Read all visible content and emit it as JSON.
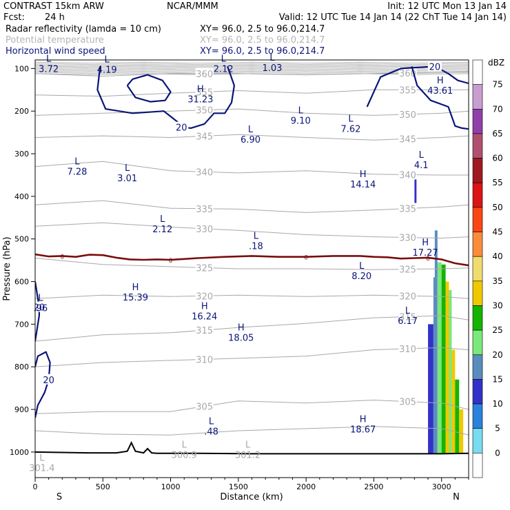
{
  "header": {
    "model": "CONTRAST 15km ARW",
    "center": "NCAR/MMM",
    "init": "Init: 12 UTC Mon 13 Jan 14",
    "fcst_label": "Fcst:",
    "fcst_value": "24 h",
    "valid": "Valid: 12 UTC Tue 14 Jan 14 (22 ChT Tue 14 Jan 14)"
  },
  "fields": [
    {
      "name": "Radar reflectivity (lamda = 10 cm)",
      "xy": "XY=  96.0,  2.5 to  96.0,214.7",
      "color": "#000000"
    },
    {
      "name": "Potential temperature",
      "xy": "XY=  96.0,  2.5 to  96.0,214.7",
      "color": "#b4b4b4"
    },
    {
      "name": "Horizontal wind speed",
      "xy": "XY=  96.0,  2.5 to  96.0,214.7",
      "color": "#0a1478"
    }
  ],
  "colors": {
    "theta": "#a8a8a8",
    "wind": "#0a1478",
    "freezing": "#7a0c0c",
    "terrain": "#000000"
  },
  "chart_data": {
    "type": "cross-section",
    "xlabel": "Distance (km)",
    "ylabel": "Pressure (hPa)",
    "xlim": [
      0,
      3200
    ],
    "ylim": [
      1060,
      80
    ],
    "x_ticks": [
      0,
      500,
      1000,
      1500,
      2000,
      2500,
      3000
    ],
    "y_ticks": [
      100,
      200,
      300,
      400,
      500,
      600,
      700,
      800,
      900,
      1000
    ],
    "end_labels": [
      "S",
      "N"
    ],
    "terrain_profile": {
      "x": [
        0,
        200,
        400,
        600,
        680,
        710,
        740,
        800,
        830,
        860,
        900,
        1200,
        1600,
        2000,
        2400,
        2800,
        3000,
        3200
      ],
      "p": [
        1000,
        1001,
        1002,
        1002,
        998,
        978,
        998,
        1002,
        992,
        1002,
        1003,
        1003,
        1004,
        1004,
        1004,
        1004,
        1004,
        1003
      ]
    },
    "freezing_level": {
      "label": "0",
      "x": [
        0,
        100,
        200,
        300,
        400,
        500,
        600,
        700,
        800,
        900,
        1000,
        1100,
        1200,
        1400,
        1600,
        1800,
        2000,
        2200,
        2400,
        2500,
        2600,
        2700,
        2800,
        2900,
        3000,
        3100,
        3200
      ],
      "p": [
        536,
        541,
        540,
        542,
        537,
        538,
        544,
        548,
        549,
        548,
        549,
        547,
        545,
        542,
        540,
        542,
        542,
        540,
        540,
        542,
        543,
        546,
        545,
        544,
        548,
        557,
        562
      ]
    },
    "theta_isolines": [
      {
        "value": "360",
        "x": [
          0,
          500,
          1000,
          1500,
          2000,
          2500,
          3000,
          3200
        ],
        "p": [
          112,
          118,
          112,
          112,
          115,
          112,
          110,
          108
        ]
      },
      {
        "value": "355",
        "x": [
          0,
          500,
          1000,
          1500,
          2000,
          2500,
          3000,
          3200
        ],
        "p": [
          162,
          165,
          158,
          152,
          158,
          150,
          150,
          150
        ]
      },
      {
        "value": "350",
        "x": [
          0,
          500,
          1000,
          1500,
          2000,
          2500,
          3000,
          3200
        ],
        "p": [
          210,
          205,
          200,
          195,
          205,
          210,
          205,
          200
        ]
      },
      {
        "value": "345",
        "x": [
          0,
          500,
          1000,
          1500,
          2000,
          2500,
          3000,
          3200
        ],
        "p": [
          262,
          258,
          262,
          255,
          262,
          268,
          262,
          258
        ]
      },
      {
        "value": "340",
        "x": [
          0,
          500,
          1000,
          1500,
          2000,
          2500,
          3000,
          3200
        ],
        "p": [
          330,
          318,
          340,
          345,
          340,
          348,
          350,
          350
        ]
      },
      {
        "value": "335",
        "x": [
          0,
          500,
          1000,
          1500,
          2000,
          2500,
          3000,
          3200
        ],
        "p": [
          420,
          410,
          428,
          430,
          438,
          432,
          425,
          420
        ]
      },
      {
        "value": "330",
        "x": [
          0,
          500,
          1000,
          1500,
          2000,
          2500,
          3000,
          3200
        ],
        "p": [
          470,
          462,
          472,
          480,
          490,
          495,
          498,
          495
        ]
      },
      {
        "value": "325",
        "x": [
          0,
          500,
          1000,
          1500,
          2000,
          2500,
          3000,
          3200
        ],
        "p": [
          545,
          560,
          565,
          570,
          570,
          572,
          570,
          568
        ]
      },
      {
        "value": "320",
        "x": [
          0,
          500,
          1000,
          1500,
          2000,
          2500,
          3000,
          3200
        ],
        "p": [
          640,
          632,
          635,
          632,
          635,
          632,
          635,
          640
        ]
      },
      {
        "value": "315",
        "x": [
          0,
          500,
          1000,
          1500,
          2000,
          2500,
          3000,
          3200
        ],
        "p": [
          740,
          725,
          720,
          708,
          698,
          685,
          680,
          690
        ]
      },
      {
        "value": "310",
        "x": [
          0,
          500,
          1000,
          1500,
          2000,
          2500,
          3000,
          3200
        ],
        "p": [
          800,
          790,
          785,
          780,
          775,
          760,
          755,
          760
        ]
      },
      {
        "value": "305",
        "x": [
          0,
          500,
          1000,
          1500,
          2000,
          2500,
          3000,
          3200
        ],
        "p": [
          910,
          905,
          905,
          880,
          885,
          878,
          885,
          900
        ]
      },
      {
        "value": "",
        "x": [
          0,
          500,
          1000,
          1500,
          2000,
          2500,
          3000,
          3200
        ],
        "p": [
          950,
          958,
          960,
          950,
          945,
          940,
          945,
          960
        ]
      }
    ],
    "wind_isotachs": [
      {
        "value": "20",
        "x": [
          480,
          460,
          520,
          720,
          950,
          1050,
          1080,
          1150,
          1250,
          1320,
          1400,
          1450,
          1470,
          1420
        ],
        "p": [
          95,
          150,
          195,
          205,
          200,
          225,
          238,
          240,
          230,
          205,
          205,
          180,
          140,
          95
        ]
      },
      {
        "value": "",
        "x": [
          680,
          720,
          830,
          940,
          1000,
          960,
          850,
          740,
          680
        ],
        "p": [
          140,
          125,
          115,
          128,
          155,
          175,
          178,
          168,
          140
        ]
      },
      {
        "value": "20",
        "x": [
          2450,
          2550,
          2700,
          2950,
          3050,
          3120,
          3200
        ],
        "p": [
          190,
          120,
          100,
          95,
          112,
          128,
          135
        ]
      },
      {
        "value": "",
        "x": [
          2780,
          2820,
          2920,
          3050,
          3100,
          3150,
          3200
        ],
        "p": [
          95,
          140,
          175,
          190,
          235,
          240,
          242
        ]
      },
      {
        "value": "20",
        "x": [
          0,
          10,
          20,
          30,
          30,
          20,
          10,
          0
        ],
        "p": [
          600,
          620,
          640,
          660,
          680,
          700,
          720,
          740
        ]
      },
      {
        "value": "20",
        "x": [
          0,
          20,
          80,
          110,
          100,
          70,
          40,
          20,
          0
        ],
        "p": [
          800,
          775,
          765,
          790,
          830,
          860,
          878,
          890,
          920
        ]
      }
    ],
    "hl_labels": [
      {
        "letter": "L",
        "value": "3.72",
        "x": 100,
        "p": 84
      },
      {
        "letter": "L",
        "value": "4.19",
        "x": 530,
        "p": 86
      },
      {
        "letter": "L",
        "value": "2.12",
        "x": 1390,
        "p": 84
      },
      {
        "letter": "L",
        "value": "1.03",
        "x": 1750,
        "p": 82
      },
      {
        "letter": "H",
        "value": "31.23",
        "x": 1220,
        "p": 155
      },
      {
        "letter": "H",
        "value": "43.61",
        "x": 2990,
        "p": 135
      },
      {
        "letter": "L",
        "value": "9.10",
        "x": 1960,
        "p": 205
      },
      {
        "letter": "L",
        "value": "7.62",
        "x": 2330,
        "p": 225
      },
      {
        "letter": "L",
        "value": "6.90",
        "x": 1590,
        "p": 250
      },
      {
        "letter": "L",
        "value": "4.1",
        "x": 2850,
        "p": 310
      },
      {
        "letter": "L",
        "value": "7.28",
        "x": 310,
        "p": 325
      },
      {
        "letter": "L",
        "value": "3.01",
        "x": 680,
        "p": 340
      },
      {
        "letter": "H",
        "value": "14.14",
        "x": 2420,
        "p": 355
      },
      {
        "letter": "L",
        "value": "2.12",
        "x": 940,
        "p": 460
      },
      {
        "letter": "L",
        "value": ".18",
        "x": 1630,
        "p": 500
      },
      {
        "letter": "H",
        "value": "17.27",
        "x": 2880,
        "p": 515
      },
      {
        "letter": "L",
        "value": "8.20",
        "x": 2410,
        "p": 570
      },
      {
        "letter": "H",
        "value": "15.39",
        "x": 740,
        "p": 620
      },
      {
        "letter": "L",
        "value": ".96",
        "x": 40,
        "p": 645
      },
      {
        "letter": "H",
        "value": "16.24",
        "x": 1250,
        "p": 665
      },
      {
        "letter": "L",
        "value": "6.17",
        "x": 2750,
        "p": 675
      },
      {
        "letter": "H",
        "value": "18.05",
        "x": 1520,
        "p": 715
      },
      {
        "letter": "L",
        "value": ".48",
        "x": 1300,
        "p": 935
      },
      {
        "letter": "H",
        "value": "18.67",
        "x": 2420,
        "p": 930
      },
      {
        "letter": "L",
        "value": "300.9",
        "x": 1100,
        "p": 990
      },
      {
        "letter": "L",
        "value": "301.2",
        "x": 1570,
        "p": 990
      },
      {
        "letter": "L",
        "value": "301.4",
        "x": 50,
        "p": 1020
      }
    ],
    "reflectivity_columns": [
      {
        "x0": 2900,
        "x1": 2940,
        "p_top": 700,
        "p_bot": 1004,
        "dbz": 10
      },
      {
        "x0": 2940,
        "x1": 2970,
        "p_top": 590,
        "p_bot": 1004,
        "dbz": 15
      },
      {
        "x0": 2970,
        "x1": 3000,
        "p_top": 555,
        "p_bot": 1004,
        "dbz": 20
      },
      {
        "x0": 3000,
        "x1": 3030,
        "p_top": 560,
        "p_bot": 1004,
        "dbz": 25
      },
      {
        "x0": 3030,
        "x1": 3055,
        "p_top": 600,
        "p_bot": 1004,
        "dbz": 30
      },
      {
        "x0": 3055,
        "x1": 3075,
        "p_top": 620,
        "p_bot": 1004,
        "dbz": 20
      },
      {
        "x0": 3075,
        "x1": 3100,
        "p_top": 760,
        "p_bot": 1004,
        "dbz": 30
      },
      {
        "x0": 3100,
        "x1": 3130,
        "p_top": 830,
        "p_bot": 1004,
        "dbz": 25
      },
      {
        "x0": 3130,
        "x1": 3160,
        "p_top": 900,
        "p_bot": 1004,
        "dbz": 30
      },
      {
        "x0": 2950,
        "x1": 2970,
        "p_top": 480,
        "p_bot": 590,
        "dbz": 15
      },
      {
        "x0": 2800,
        "x1": 2815,
        "p_top": 360,
        "p_bot": 430,
        "dbz": 10
      }
    ],
    "colorbar": {
      "label": "dBZ",
      "levels": [
        75,
        70,
        65,
        60,
        55,
        50,
        45,
        40,
        35,
        30,
        25,
        20,
        15,
        10,
        5,
        0
      ],
      "colors": [
        "#ffffff",
        "#c89ed0",
        "#9040a8",
        "#b05070",
        "#a01820",
        "#dc1414",
        "#fa4614",
        "#fa8c3c",
        "#f0dc6e",
        "#f0c800",
        "#14b400",
        "#7ae87a",
        "#5a8cbe",
        "#3232c8",
        "#2a82dc",
        "#78dcf0",
        "#ffffff"
      ]
    }
  }
}
